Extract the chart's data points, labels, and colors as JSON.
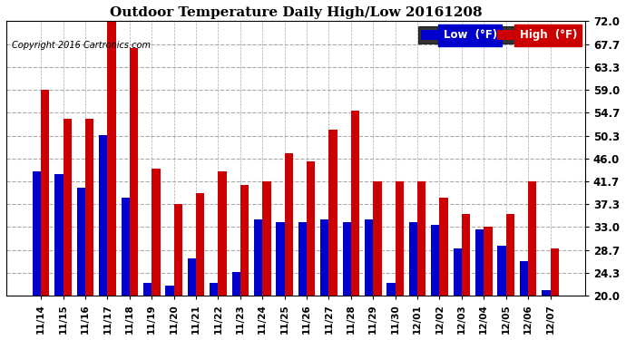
{
  "title": "Outdoor Temperature Daily High/Low 20161208",
  "copyright": "Copyright 2016 Cartronics.com",
  "legend_low": "Low  (°F)",
  "legend_high": "High  (°F)",
  "low_color": "#0000cc",
  "high_color": "#cc0000",
  "background_color": "#ffffff",
  "grid_color": "#aaaaaa",
  "ylim": [
    20.0,
    72.0
  ],
  "yticks": [
    20.0,
    24.3,
    28.7,
    33.0,
    37.3,
    41.7,
    46.0,
    50.3,
    54.7,
    59.0,
    63.3,
    67.7,
    72.0
  ],
  "dates": [
    "11/14",
    "11/15",
    "11/16",
    "11/17",
    "11/18",
    "11/19",
    "11/20",
    "11/21",
    "11/22",
    "11/23",
    "11/24",
    "11/25",
    "11/26",
    "11/27",
    "11/28",
    "11/29",
    "11/30",
    "12/01",
    "12/02",
    "12/03",
    "12/04",
    "12/05",
    "12/06",
    "12/07"
  ],
  "low": [
    43.5,
    43.0,
    40.5,
    50.5,
    38.5,
    22.5,
    22.0,
    27.0,
    22.5,
    24.5,
    34.5,
    34.0,
    34.0,
    34.5,
    34.0,
    34.5,
    22.5,
    34.0,
    33.5,
    29.0,
    32.5,
    29.5,
    26.5,
    21.0
  ],
  "high": [
    59.0,
    53.5,
    53.5,
    72.5,
    67.0,
    44.0,
    37.3,
    39.5,
    43.5,
    41.0,
    41.7,
    47.0,
    45.5,
    51.5,
    55.0,
    41.7,
    41.7,
    41.7,
    38.5,
    35.5,
    33.0,
    35.5,
    41.7,
    29.0
  ]
}
